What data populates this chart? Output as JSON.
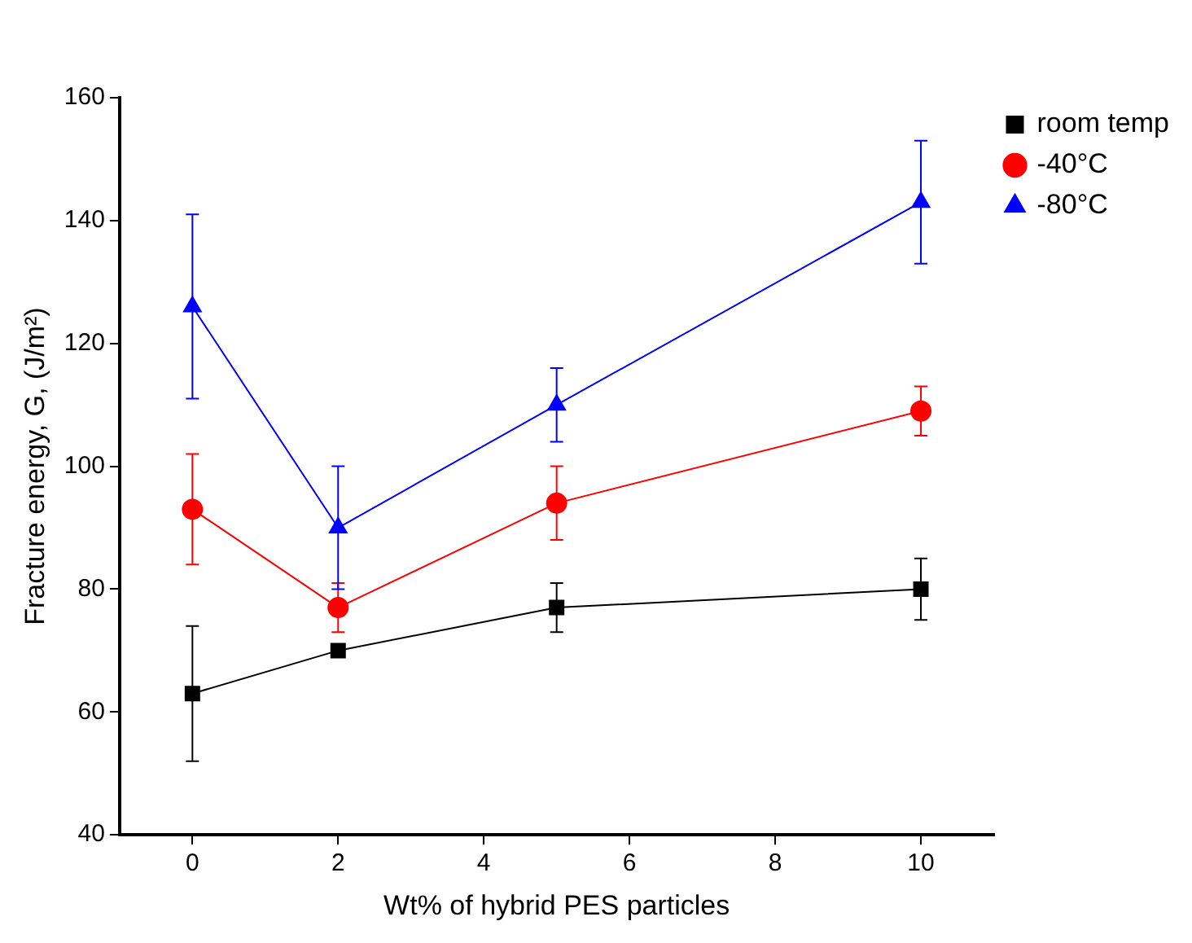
{
  "chart_data": {
    "type": "line",
    "xlabel": "Wt% of hybrid PES particles",
    "ylabel": "Fracture energy, G, (J/m²)",
    "x": [
      0,
      2,
      5,
      10
    ],
    "xlim": [
      -1,
      11
    ],
    "xticks": [
      0,
      2,
      4,
      6,
      8,
      10
    ],
    "ylim": [
      40,
      160
    ],
    "yticks": [
      40,
      60,
      80,
      100,
      120,
      140,
      160
    ],
    "grid": false,
    "legend": "top right",
    "series": [
      {
        "name": "room temp",
        "color": "#000000",
        "marker": "square",
        "values": [
          63,
          70,
          77,
          80
        ],
        "errors": [
          11,
          null,
          4,
          5
        ]
      },
      {
        "name": "-40°C",
        "color": "#ff0000",
        "marker": "circle",
        "values": [
          93,
          77,
          94,
          109
        ],
        "errors": [
          9,
          4,
          6,
          4
        ]
      },
      {
        "name": "-80°C",
        "color": "#0000ff",
        "marker": "triangle",
        "values": [
          126,
          90,
          110,
          143
        ],
        "errors": [
          15,
          10,
          6,
          10
        ]
      }
    ]
  }
}
